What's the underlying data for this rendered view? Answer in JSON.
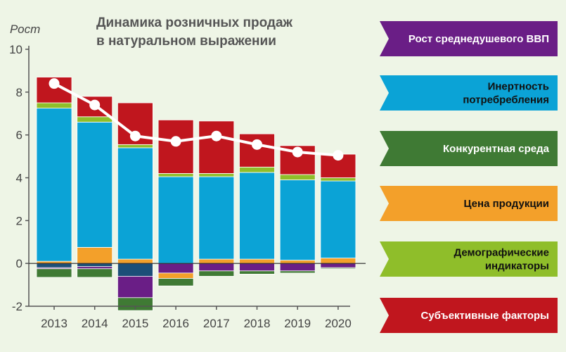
{
  "chart_data": {
    "type": "bar",
    "stacked": true,
    "title_lines": [
      "Динамика розничных продаж",
      "в натуральном выражении"
    ],
    "ylabel": "Рост",
    "xlabel": "",
    "ylim": [
      -2,
      10
    ],
    "yticks": [
      "-2",
      "0",
      "2",
      "4",
      "6",
      "8",
      "10"
    ],
    "categories": [
      "2013",
      "2014",
      "2015",
      "2016",
      "2017",
      "2018",
      "2019",
      "2020"
    ],
    "legend_position": "right",
    "series": [
      {
        "name": "Рост среднедушевого ВВП",
        "color": "#6a1e86",
        "values": [
          -0.05,
          -0.1,
          -1.0,
          -0.45,
          -0.35,
          -0.35,
          -0.35,
          -0.2
        ]
      },
      {
        "name": "Инертность потребребления",
        "color": "#0ba3d6",
        "values": [
          7.15,
          5.85,
          5.2,
          4.05,
          3.85,
          4.05,
          3.75,
          3.6
        ]
      },
      {
        "name": "Конкурентная среда",
        "color": "#3f7a34",
        "values": [
          -0.4,
          -0.4,
          -0.6,
          -0.35,
          -0.25,
          -0.15,
          -0.1,
          -0.05
        ]
      },
      {
        "name": "Цена продукции",
        "color": "#f3a02a",
        "values": [
          0.1,
          0.75,
          0.2,
          -0.25,
          0.2,
          0.2,
          0.15,
          0.25
        ]
      },
      {
        "name": "Демографические индикаторы",
        "color": "#8fbe2a",
        "values": [
          0.25,
          0.25,
          0.15,
          0.15,
          0.15,
          0.25,
          0.25,
          0.15
        ]
      },
      {
        "name": "Субъективные факторы",
        "color": "#c0161e",
        "values": [
          1.2,
          0.95,
          1.95,
          2.5,
          2.45,
          1.55,
          1.35,
          1.1
        ]
      }
    ],
    "base_segment": {
      "color": "#1c4f78",
      "values": [
        -0.2,
        -0.15,
        -0.6,
        0.0,
        0.0,
        0.0,
        0.0,
        0.0
      ]
    },
    "line": {
      "name": "Рост",
      "color": "#ffffff",
      "values": [
        8.4,
        7.4,
        5.95,
        5.7,
        5.95,
        5.55,
        5.2,
        5.05
      ]
    },
    "grid": false
  },
  "legend_items": [
    {
      "lines": [
        "Рост среднедушевого ВВП"
      ],
      "color": "#6a1e86",
      "text_color": "white"
    },
    {
      "lines": [
        "Инертность",
        "потребребления"
      ],
      "color": "#0ba3d6",
      "text_color": "dark"
    },
    {
      "lines": [
        "Конкурентная среда"
      ],
      "color": "#3f7a34",
      "text_color": "white"
    },
    {
      "lines": [
        "Цена продукции"
      ],
      "color": "#f3a02a",
      "text_color": "dark"
    },
    {
      "lines": [
        "Демографические",
        "индикаторы"
      ],
      "color": "#8fbe2a",
      "text_color": "dark"
    },
    {
      "lines": [
        "Субъективные факторы"
      ],
      "color": "#c0161e",
      "text_color": "white"
    }
  ]
}
